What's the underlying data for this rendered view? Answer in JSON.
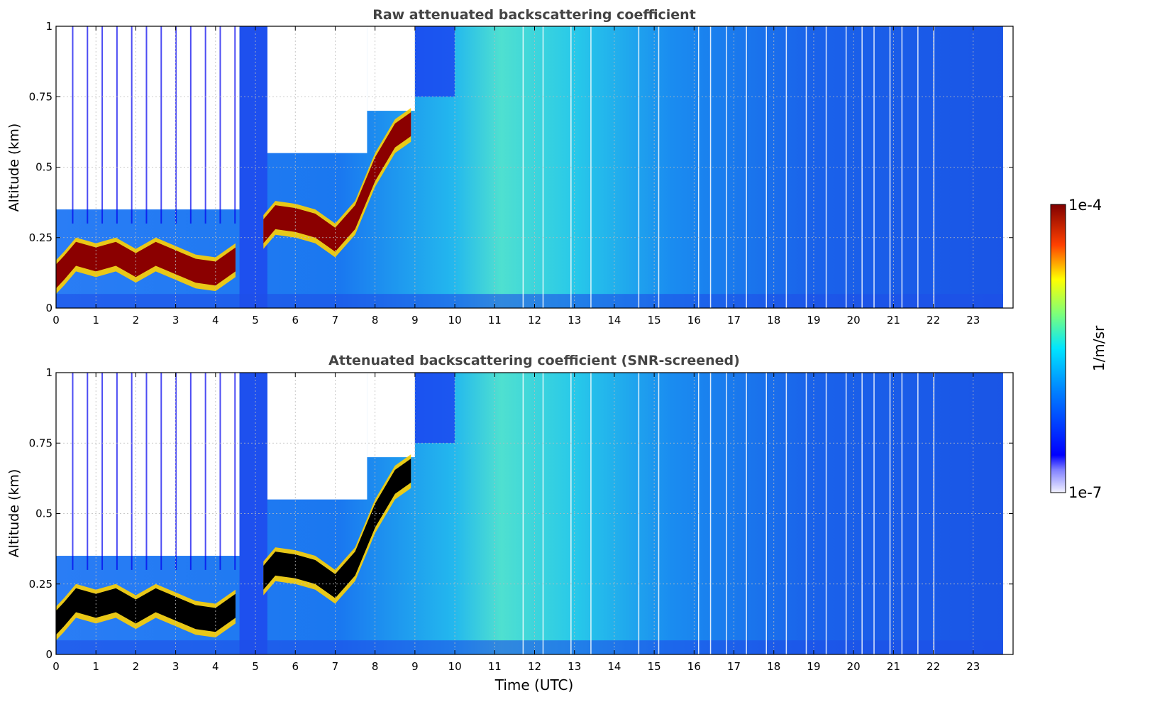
{
  "chart_data": [
    {
      "type": "heatmap",
      "title": "Raw attenuated backscattering coefficient",
      "xlabel": "",
      "ylabel": "Altitude (km)",
      "xlim": [
        0,
        24
      ],
      "ylim": [
        0,
        1
      ],
      "x_ticks": [
        "0",
        "1",
        "2",
        "3",
        "4",
        "5",
        "6",
        "7",
        "8",
        "9",
        "10",
        "11",
        "12",
        "13",
        "14",
        "15",
        "16",
        "17",
        "18",
        "19",
        "20",
        "21",
        "22",
        "23"
      ],
      "y_ticks": [
        "0",
        "0.25",
        "0.5",
        "0.75",
        "1"
      ],
      "grid": true,
      "data_extent_hours": 23.75,
      "layers": [
        {
          "feature": "cloud base / aerosol layer",
          "hours": [
            0,
            0.2,
            0.5,
            1.0,
            1.5,
            2.0,
            2.5,
            3.0,
            3.5,
            4.0,
            4.5
          ],
          "altitude_km": [
            0.12,
            0.15,
            0.2,
            0.18,
            0.2,
            0.16,
            0.2,
            0.17,
            0.14,
            0.13,
            0.18
          ]
        },
        {
          "feature": "elevated layer",
          "hours": [
            5.2,
            5.5,
            6.0,
            6.5,
            7.0,
            7.5,
            8.0,
            8.5,
            8.9
          ],
          "altitude_km": [
            0.28,
            0.33,
            0.32,
            0.3,
            0.25,
            0.33,
            0.5,
            0.62,
            0.66
          ]
        }
      ],
      "colorscale": "jet",
      "colorbar": {
        "min_label": "1e-7",
        "max_label": "1e-4",
        "label": "1/m/sr",
        "scale": "log"
      }
    },
    {
      "type": "heatmap",
      "title": "Attenuated backscattering coefficient (SNR-screened)",
      "xlabel": "Time (UTC)",
      "ylabel": "Altitude (km)",
      "xlim": [
        0,
        24
      ],
      "ylim": [
        0,
        1
      ],
      "x_ticks": [
        "0",
        "1",
        "2",
        "3",
        "4",
        "5",
        "6",
        "7",
        "8",
        "9",
        "10",
        "11",
        "12",
        "13",
        "14",
        "15",
        "16",
        "17",
        "18",
        "19",
        "20",
        "21",
        "22",
        "23"
      ],
      "y_ticks": [
        "0",
        "0.25",
        "0.5",
        "0.75",
        "1"
      ],
      "grid": true,
      "data_extent_hours": 23.75,
      "saturated_color": "#000000"
    }
  ],
  "colorbar": {
    "max_label": "1e-4",
    "min_label": "1e-7",
    "label": "1/m/sr"
  },
  "colors": {
    "background_white": "#ffffff",
    "clear_air_blue": "#1a5cf0",
    "cloud_red": "#8b0000"
  }
}
